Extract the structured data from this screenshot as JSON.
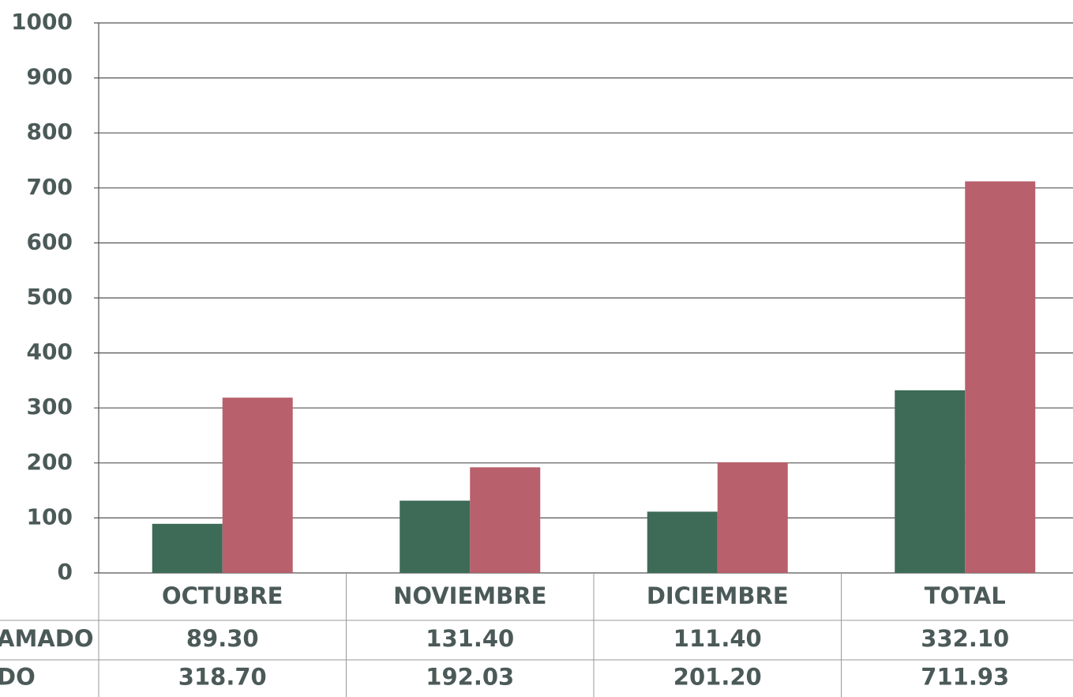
{
  "chart_data": {
    "type": "bar",
    "categories": [
      "OCTUBRE",
      "NOVIEMBRE",
      "DICIEMBRE",
      "TOTAL"
    ],
    "series": [
      {
        "name": "AMADO",
        "color": "#3d6b57",
        "values": [
          89.3,
          131.4,
          111.4,
          332.1
        ],
        "value_labels": [
          "89.30",
          "131.40",
          "111.40",
          "332.10"
        ]
      },
      {
        "name": "DO",
        "color": "#b8606c",
        "values": [
          318.7,
          192.03,
          201.2,
          711.93
        ],
        "value_labels": [
          "318.70",
          "192.03",
          "201.20",
          "711.93"
        ]
      }
    ],
    "ylim": [
      0,
      1000
    ],
    "yticks": [
      0,
      100,
      200,
      300,
      400,
      500,
      600,
      700,
      800,
      900,
      1000
    ],
    "grid": true
  }
}
